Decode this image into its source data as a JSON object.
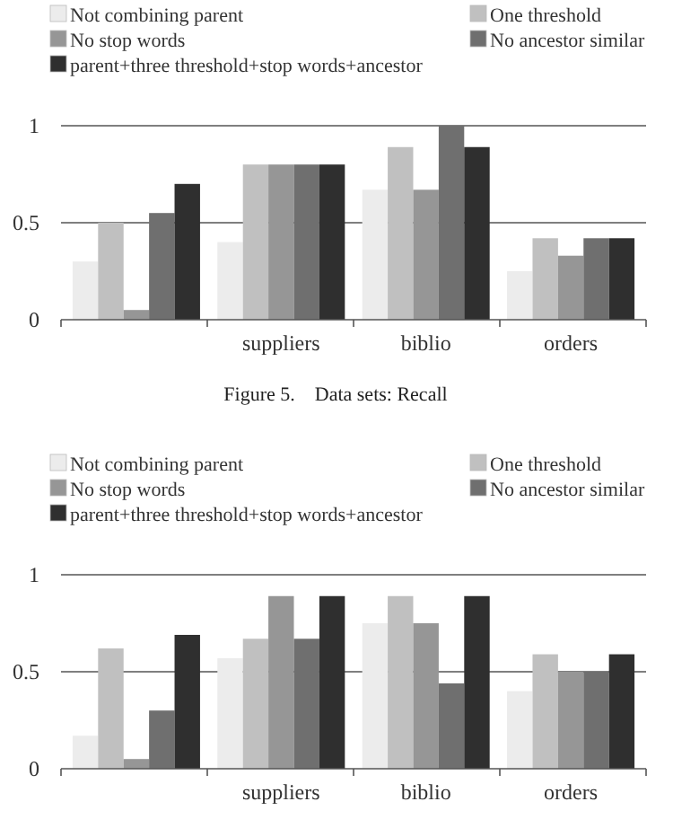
{
  "chart_data": [
    {
      "type": "bar",
      "categories": [
        null,
        "suppliers",
        "biblio",
        "orders"
      ],
      "series": [
        {
          "name": "Not combining parent",
          "color": "#ececec",
          "values": [
            0.3,
            0.4,
            0.67,
            0.25
          ]
        },
        {
          "name": "One threshold",
          "color": "#c0c0c0",
          "values": [
            0.5,
            0.8,
            0.89,
            0.42
          ]
        },
        {
          "name": "No stop words",
          "color": "#969696",
          "values": [
            0.05,
            0.8,
            0.67,
            0.33
          ]
        },
        {
          "name": "No ancestor similar",
          "color": "#6f6f6f",
          "values": [
            0.55,
            0.8,
            1.0,
            0.42
          ]
        },
        {
          "name": "parent+three threshold+stop words+ancestor",
          "color": "#2f2f2f",
          "values": [
            0.7,
            0.8,
            0.89,
            0.42
          ]
        }
      ],
      "ylim": [
        0,
        1
      ],
      "yticks": [
        0,
        0.5,
        1
      ],
      "grid": "y",
      "legend": "top",
      "annotations": [
        "Figure 5.    Data sets: Recall"
      ]
    },
    {
      "type": "bar",
      "categories": [
        null,
        "suppliers",
        "biblio",
        "orders"
      ],
      "series": [
        {
          "name": "Not combining parent",
          "color": "#ececec",
          "values": [
            0.17,
            0.57,
            0.75,
            0.4
          ]
        },
        {
          "name": "One threshold",
          "color": "#c0c0c0",
          "values": [
            0.62,
            0.67,
            0.89,
            0.59
          ]
        },
        {
          "name": "No stop words",
          "color": "#969696",
          "values": [
            0.05,
            0.89,
            0.75,
            0.5
          ]
        },
        {
          "name": "No ancestor similar",
          "color": "#6f6f6f",
          "values": [
            0.3,
            0.67,
            0.44,
            0.5
          ]
        },
        {
          "name": "parent+three threshold+stop words+ancestor",
          "color": "#2f2f2f",
          "values": [
            0.69,
            0.89,
            0.89,
            0.59
          ]
        }
      ],
      "ylim": [
        0,
        1
      ],
      "yticks": [
        0,
        0.5,
        1
      ],
      "grid": "y",
      "legend": "top"
    }
  ]
}
